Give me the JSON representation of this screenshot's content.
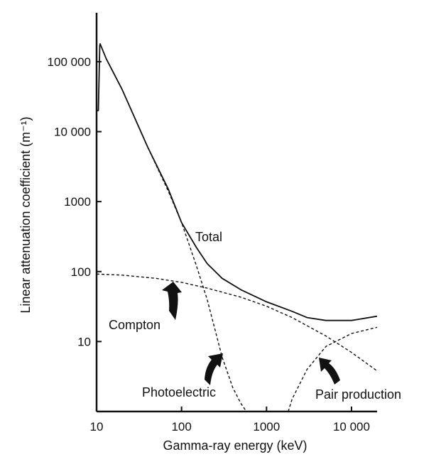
{
  "chart_data": {
    "type": "line",
    "title": "",
    "xlabel": "Gamma-ray energy (keV)",
    "ylabel": "Linear attenuation coefficient (m⁻¹)",
    "x_scale": "log",
    "y_scale": "log",
    "xlim": [
      10,
      20000
    ],
    "ylim": [
      1,
      500000
    ],
    "x_ticks": [
      10,
      100,
      1000,
      10000
    ],
    "x_tick_labels": [
      "10",
      "100",
      "1000",
      "10 000"
    ],
    "y_ticks": [
      10,
      100,
      1000,
      10000,
      100000
    ],
    "y_tick_labels": [
      "10",
      "100",
      "1000",
      "10 000",
      "100 000"
    ],
    "grid": false,
    "series": [
      {
        "name": "Total",
        "style": "solid",
        "x": [
          10,
          10.5,
          10.9,
          11,
          13,
          20,
          40,
          70,
          100,
          150,
          200,
          300,
          500,
          1000,
          2000,
          3000,
          5000,
          10000,
          20000
        ],
        "y": [
          20000,
          20000,
          170000,
          180000,
          110000,
          40000,
          6000,
          1500,
          500,
          220,
          130,
          80,
          55,
          37,
          27,
          22,
          20,
          20,
          23
        ]
      },
      {
        "name": "Compton",
        "style": "dashed",
        "x": [
          10,
          20,
          50,
          100,
          200,
          500,
          1000,
          2000,
          5000,
          10000,
          20000
        ],
        "y": [
          92,
          89,
          80,
          70,
          58,
          43,
          32,
          22,
          12,
          7,
          3.8
        ]
      },
      {
        "name": "Photoelectric",
        "style": "dashed",
        "x": [
          40,
          70,
          100,
          150,
          200,
          300,
          400,
          500,
          580
        ],
        "y": [
          6000,
          1400,
          500,
          120,
          40,
          6,
          2.2,
          1.3,
          1
        ]
      },
      {
        "name": "Pair production",
        "style": "dashed",
        "x": [
          1800,
          2000,
          3000,
          5000,
          10000,
          20000
        ],
        "y": [
          1,
          1.5,
          4,
          8.5,
          13,
          16
        ]
      }
    ],
    "annotations": [
      "Total",
      "Compton",
      "Photoelectric",
      "Pair production"
    ]
  }
}
